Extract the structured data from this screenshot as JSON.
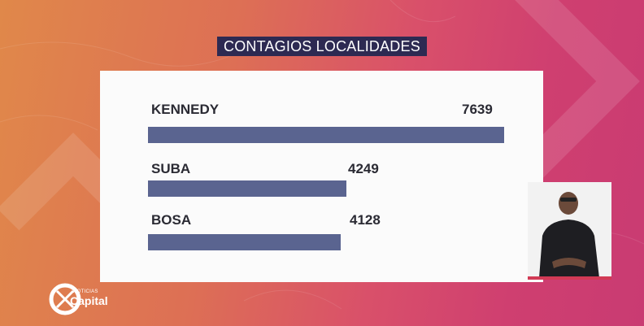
{
  "chart_data": {
    "type": "bar",
    "orientation": "horizontal",
    "title": "CONTAGIOS LOCALIDADES",
    "categories": [
      "KENNEDY",
      "SUBA",
      "BOSA"
    ],
    "values": [
      7639,
      4249,
      4128
    ],
    "xlim": [
      0,
      7639
    ],
    "grid": false,
    "legend": "none",
    "bar_color": "#5a6490"
  },
  "branding": {
    "logo_small": "NOTICIAS",
    "logo_name": "Capital"
  },
  "colors": {
    "title_bg": "#2d2a52",
    "panel_bg": "#fbfbfb",
    "accent": "#d23a55"
  }
}
